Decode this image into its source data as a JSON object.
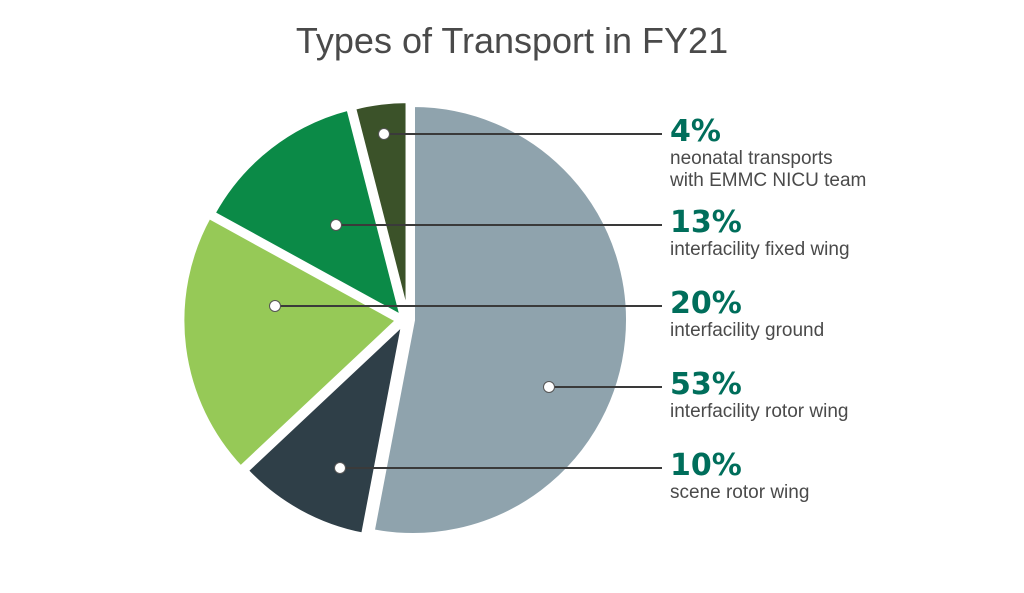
{
  "chart_data": {
    "type": "pie",
    "title": "Types of Transport in FY21",
    "start_angle_deg": 0,
    "direction": "clockwise",
    "slices": [
      {
        "label": "interfacility rotor wing",
        "value": 53,
        "display": "53%",
        "color": "#8fa3ad",
        "exploded": false
      },
      {
        "label": "scene rotor wing",
        "value": 10,
        "display": "10%",
        "color": "#2f3f48",
        "exploded": true
      },
      {
        "label": "interfacility ground",
        "value": 20,
        "display": "20%",
        "color": "#96c957",
        "exploded": true
      },
      {
        "label": "interfacility fixed wing",
        "value": 13,
        "display": "13%",
        "color": "#0b8a47",
        "exploded": true
      },
      {
        "label": "neonatal transports with EMMC NICU team",
        "value": 4,
        "display": "4%",
        "color": "#3b5229",
        "exploded": true
      }
    ],
    "legend_order": [
      4,
      3,
      2,
      0,
      1
    ],
    "legend_placement": "right",
    "accent_color": "#006e5b"
  }
}
